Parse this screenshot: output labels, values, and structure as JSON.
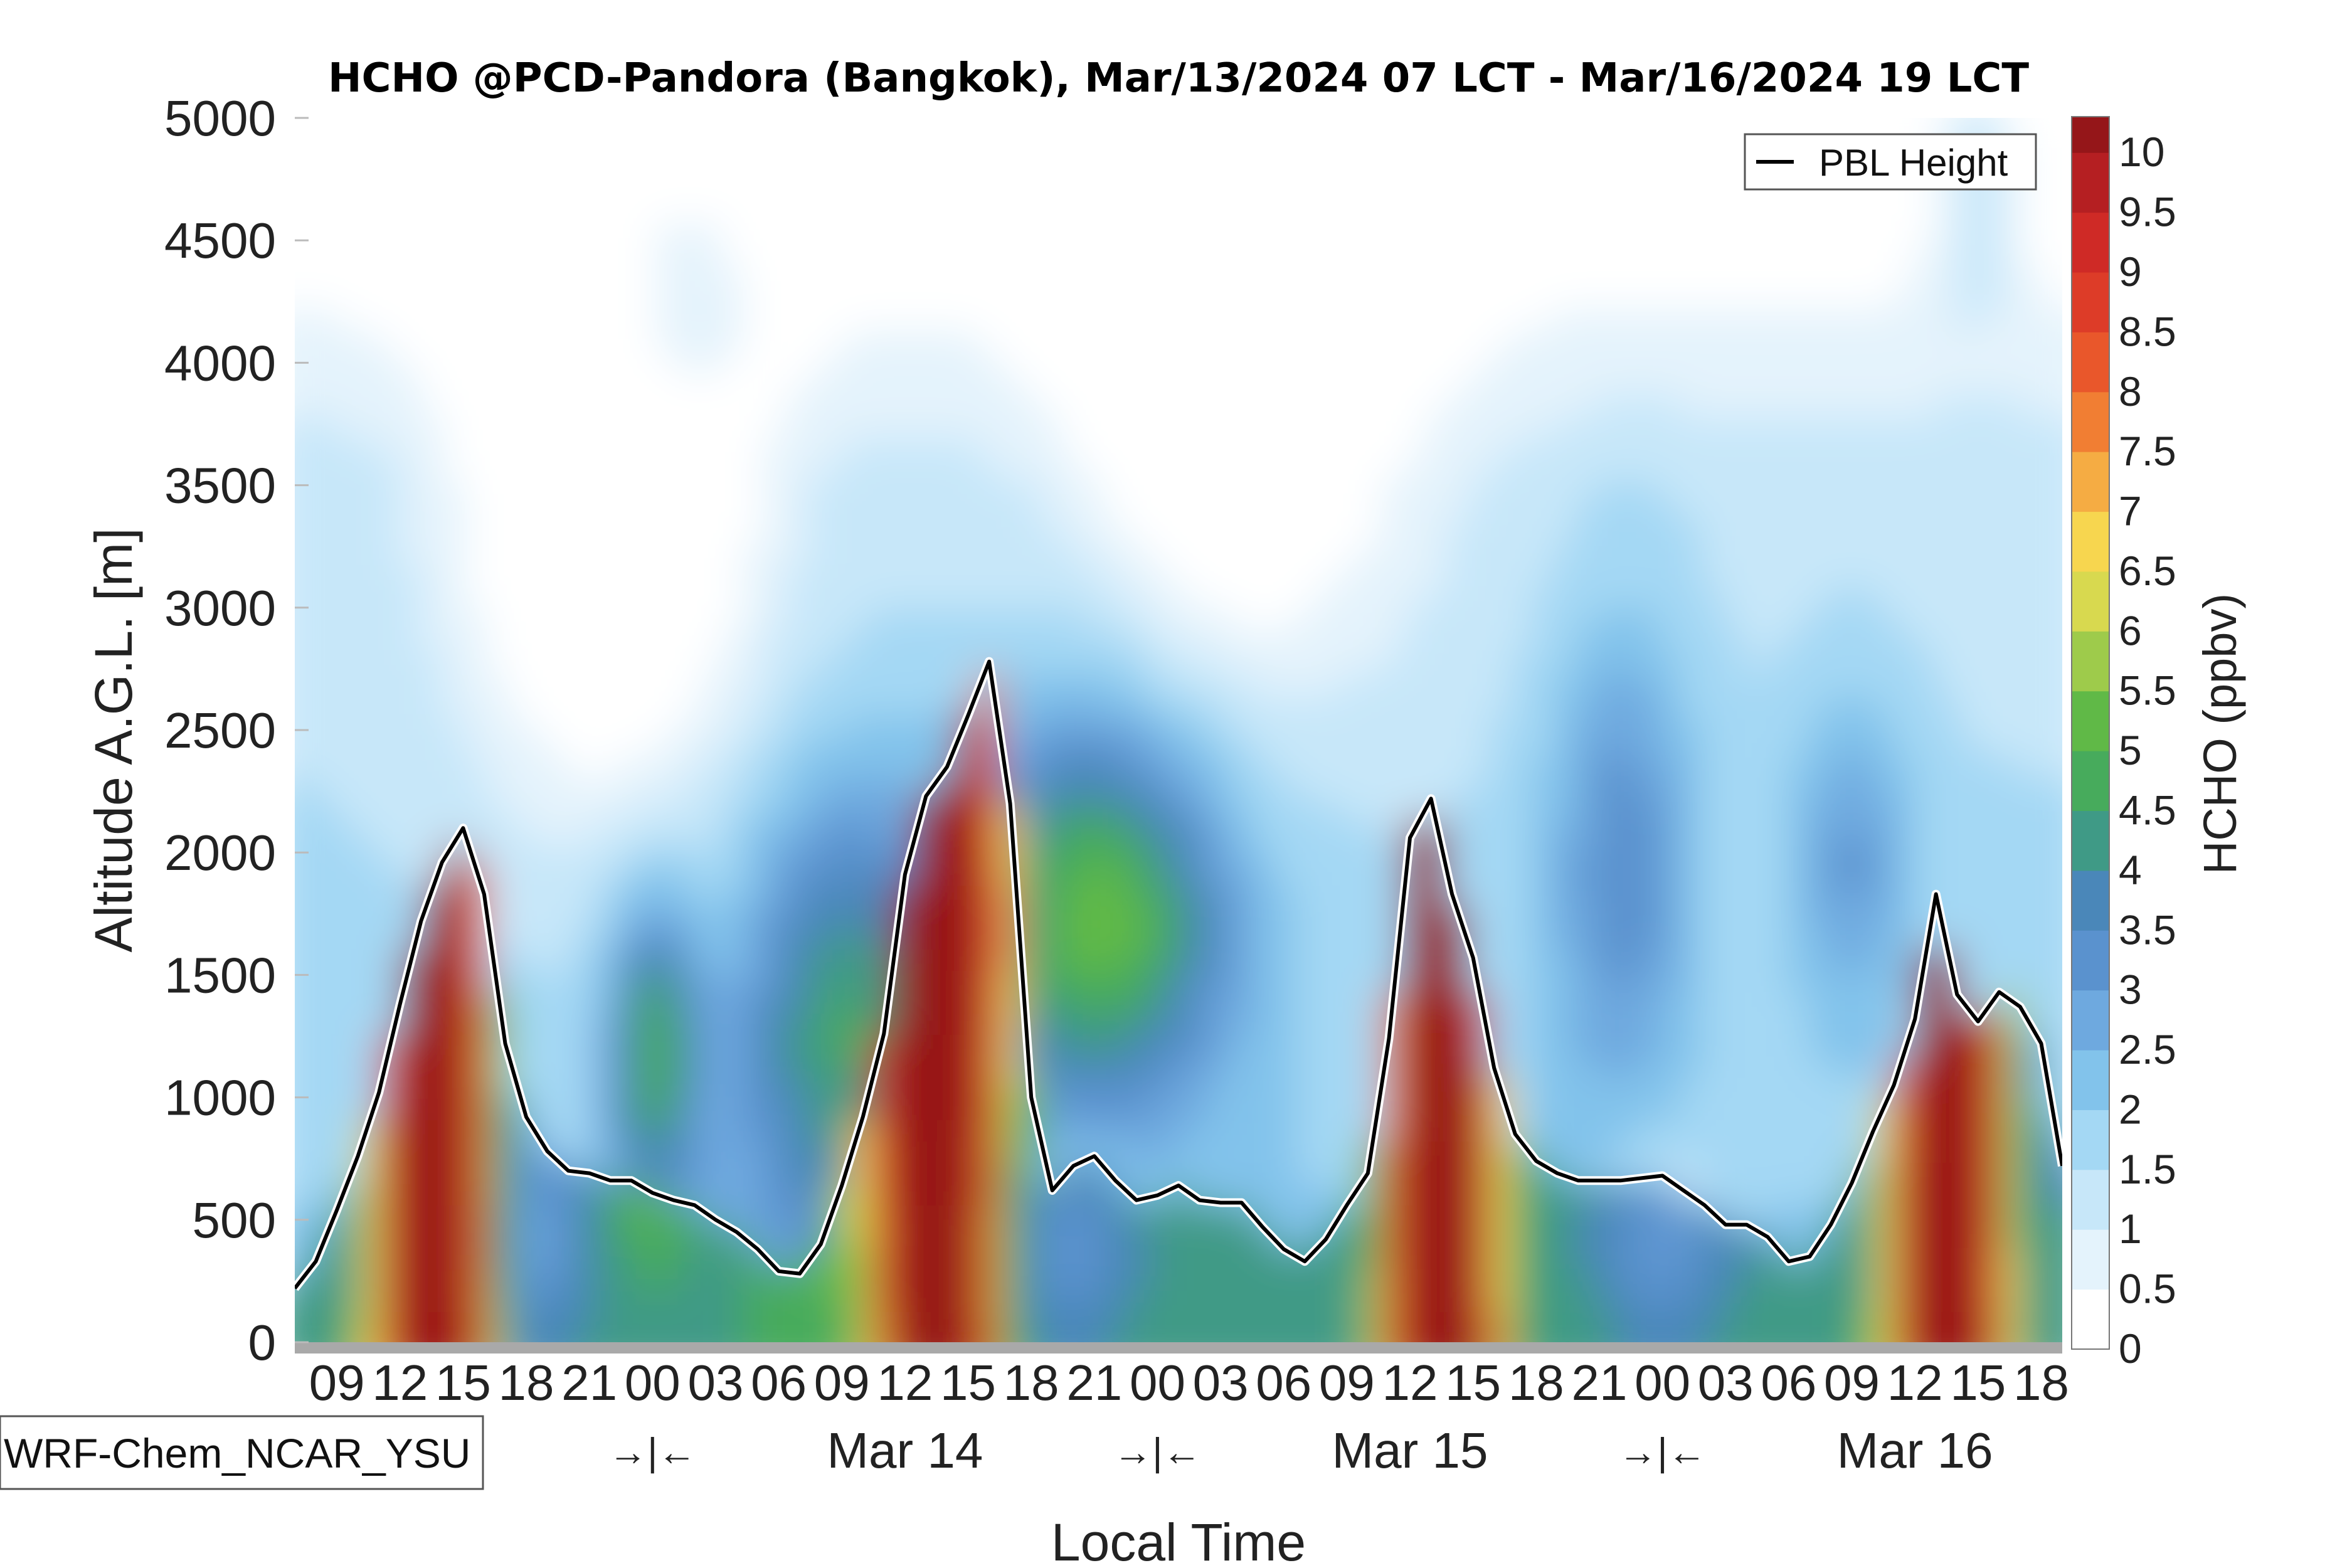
{
  "chart_data": {
    "type": "contour",
    "title": "HCHO @PCD-Pandora (Bangkok), Mar/13/2024 07 LCT - Mar/16/2024 19 LCT",
    "xlabel": "Local Time",
    "ylabel": "Altitude A.G.L. [m]",
    "ylim": [
      0,
      5000
    ],
    "y_ticks": [
      "0",
      "500",
      "1000",
      "1500",
      "2000",
      "2500",
      "3000",
      "3500",
      "4000",
      "4500",
      "5000"
    ],
    "x_range_hours": [
      0,
      84
    ],
    "x_ticks": [
      "09",
      "12",
      "15",
      "18",
      "21",
      "00",
      "03",
      "06",
      "09",
      "12",
      "15",
      "18",
      "21",
      "00",
      "03",
      "06",
      "09",
      "12",
      "15",
      "18",
      "21",
      "00",
      "03",
      "06",
      "09",
      "12",
      "15",
      "18"
    ],
    "x_tick_hours": [
      2,
      5,
      8,
      11,
      14,
      17,
      20,
      23,
      26,
      29,
      32,
      35,
      38,
      41,
      44,
      47,
      50,
      53,
      56,
      59,
      62,
      65,
      68,
      71,
      74,
      77,
      80,
      83
    ],
    "day_labels": [
      {
        "text": "Mar 14",
        "hour": 29
      },
      {
        "text": "Mar 15",
        "hour": 53
      },
      {
        "text": "Mar 16",
        "hour": 77
      }
    ],
    "midnight_marks": {
      "text": "→|←",
      "hours": [
        17,
        41,
        65
      ]
    },
    "colorbar": {
      "label": "HCHO (ppbv)",
      "min": 0,
      "max": 10.3,
      "ticks": [
        "0",
        "0.5",
        "1",
        "1.5",
        "2",
        "2.5",
        "3",
        "3.5",
        "4",
        "4.5",
        "5",
        "5.5",
        "6",
        "6.5",
        "7",
        "7.5",
        "8",
        "8.5",
        "9",
        "9.5",
        "10"
      ],
      "levels": [
        0,
        0.5,
        1,
        1.5,
        2,
        2.5,
        3,
        3.5,
        4,
        4.5,
        5,
        5.5,
        6,
        6.5,
        7,
        7.5,
        8,
        8.5,
        9,
        9.5,
        10
      ],
      "colors": [
        "#ffffff",
        "#e4f3fc",
        "#c7e7f9",
        "#a4d8f4",
        "#82c3eb",
        "#6ea9df",
        "#5a92ce",
        "#4a87b9",
        "#3f9a86",
        "#47ab5c",
        "#60b947",
        "#9ecb4b",
        "#d8d94f",
        "#f7d64f",
        "#f5ac43",
        "#f17e33",
        "#e9572b",
        "#dd3c28",
        "#cf2a26",
        "#b51f22",
        "#951619"
      ]
    },
    "legend": {
      "entries": [
        "PBL Height"
      ],
      "placement": "top-right"
    },
    "model_label": "WRF-Chem_NCAR_YSU",
    "pbl_height": {
      "hours": [
        0,
        1,
        2,
        3,
        4,
        5,
        6,
        7,
        8,
        9,
        10,
        11,
        12,
        13,
        14,
        15,
        16,
        17,
        18,
        19,
        20,
        21,
        22,
        23,
        24,
        25,
        26,
        27,
        28,
        29,
        30,
        31,
        32,
        33,
        34,
        35,
        36,
        37,
        38,
        39,
        40,
        41,
        42,
        43,
        44,
        45,
        46,
        47,
        48,
        49,
        50,
        51,
        52,
        53,
        54,
        55,
        56,
        57,
        58,
        59,
        60,
        61,
        62,
        63,
        64,
        65,
        66,
        67,
        68,
        69,
        70,
        71,
        72,
        73,
        74,
        75,
        76,
        77,
        78,
        79,
        80,
        81,
        82,
        83,
        84
      ],
      "values": [
        220,
        330,
        540,
        760,
        1020,
        1380,
        1720,
        1960,
        2100,
        1830,
        1220,
        920,
        780,
        700,
        690,
        660,
        660,
        610,
        580,
        560,
        500,
        450,
        380,
        290,
        280,
        400,
        640,
        920,
        1260,
        1910,
        2230,
        2350,
        2560,
        2780,
        2200,
        1000,
        620,
        720,
        760,
        660,
        580,
        600,
        640,
        580,
        570,
        570,
        470,
        380,
        330,
        420,
        560,
        690,
        1240,
        2060,
        2220,
        1830,
        1570,
        1120,
        850,
        740,
        690,
        660,
        660,
        660,
        670,
        680,
        620,
        560,
        480,
        480,
        430,
        330,
        350,
        480,
        650,
        860,
        1050,
        1320,
        1830,
        1420,
        1310,
        1430,
        1370,
        1220,
        720
      ]
    }
  }
}
